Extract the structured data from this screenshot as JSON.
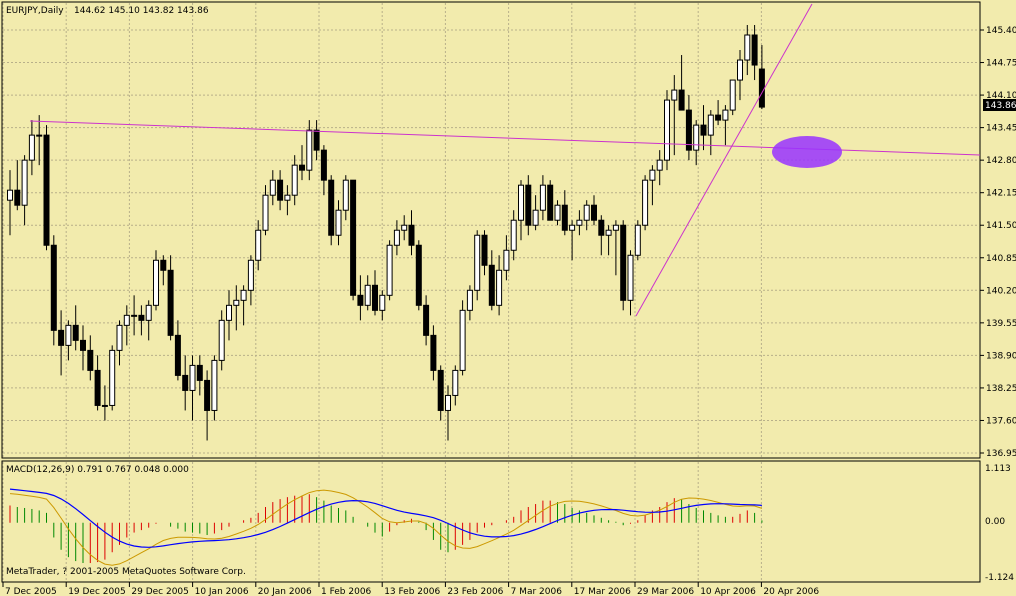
{
  "window": {
    "title": "EURJPY,Daily",
    "ohlc": "144.62 145.10 143.82 143.86"
  },
  "price_axis": {
    "ticks": [
      "145.40",
      "144.75",
      "144.10",
      "143.45",
      "142.80",
      "142.15",
      "141.50",
      "140.85",
      "140.20",
      "139.55",
      "138.90",
      "138.25",
      "137.60",
      "136.95"
    ],
    "current_price": "143.86"
  },
  "macd_panel": {
    "title": "MACD(12,26,9) 0.791 0.767 0.048 0.000",
    "ticks": [
      "1.113",
      "0.00",
      "-1.124"
    ]
  },
  "copyright": "MetaTrader, ? 2001-2005 MetaQuotes Software Corp.",
  "time_axis": [
    "7 Dec 2005",
    "19 Dec 2005",
    "29 Dec 2005",
    "10 Jan 2006",
    "20 Jan 2006",
    "1 Feb 2006",
    "13 Feb 2006",
    "23 Feb 2006",
    "7 Mar 2006",
    "17 Mar 2006",
    "29 Mar 2006",
    "10 Apr 2006",
    "20 Apr 2006"
  ],
  "colors": {
    "background": "#f2ebad",
    "grid": "#b8b08a",
    "trendline": "#cc33cc",
    "ellipse": "#9933ff",
    "macd_line": "#0000ff",
    "signal_line": "#cc9900",
    "hist_up": "#008800",
    "hist_down": "#dd0000"
  },
  "chart_data": {
    "type": "candlestick",
    "symbol": "EURJPY",
    "timeframe": "Daily",
    "ylim": [
      136.95,
      145.4
    ],
    "candles": [
      [
        142.0,
        142.6,
        141.3,
        142.2
      ],
      [
        142.2,
        142.8,
        141.8,
        141.9
      ],
      [
        141.9,
        142.9,
        141.5,
        142.8
      ],
      [
        142.8,
        143.6,
        142.5,
        143.3
      ],
      [
        143.3,
        143.7,
        142.7,
        143.3
      ],
      [
        143.3,
        143.5,
        141.0,
        141.1
      ],
      [
        141.1,
        141.3,
        139.1,
        139.4
      ],
      [
        139.4,
        139.8,
        138.5,
        139.1
      ],
      [
        139.1,
        139.6,
        138.8,
        139.5
      ],
      [
        139.5,
        139.9,
        139.0,
        139.2
      ],
      [
        139.2,
        139.5,
        138.6,
        139.0
      ],
      [
        139.0,
        139.3,
        138.4,
        138.6
      ],
      [
        138.6,
        138.9,
        137.8,
        137.9
      ],
      [
        137.9,
        138.3,
        137.6,
        137.9
      ],
      [
        137.9,
        139.1,
        137.8,
        139.0
      ],
      [
        139.0,
        139.6,
        138.7,
        139.5
      ],
      [
        139.5,
        139.9,
        139.1,
        139.7
      ],
      [
        139.7,
        140.1,
        139.3,
        139.7
      ],
      [
        139.7,
        139.9,
        139.3,
        139.6
      ],
      [
        139.6,
        140.0,
        139.2,
        139.9
      ],
      [
        139.9,
        141.0,
        139.8,
        140.8
      ],
      [
        140.8,
        140.9,
        140.3,
        140.6
      ],
      [
        140.6,
        140.9,
        139.2,
        139.3
      ],
      [
        139.3,
        139.6,
        138.4,
        138.5
      ],
      [
        138.5,
        138.9,
        137.8,
        138.2
      ],
      [
        138.2,
        138.9,
        137.6,
        138.7
      ],
      [
        138.7,
        138.9,
        138.1,
        138.4
      ],
      [
        138.4,
        138.6,
        137.2,
        137.8
      ],
      [
        137.8,
        138.9,
        137.6,
        138.8
      ],
      [
        138.8,
        139.8,
        138.6,
        139.6
      ],
      [
        139.6,
        140.2,
        139.2,
        139.9
      ],
      [
        139.9,
        140.3,
        139.4,
        140.0
      ],
      [
        140.0,
        140.3,
        139.5,
        140.2
      ],
      [
        140.2,
        140.9,
        139.9,
        140.8
      ],
      [
        140.8,
        141.6,
        140.6,
        141.4
      ],
      [
        141.4,
        142.3,
        141.3,
        142.1
      ],
      [
        142.1,
        142.6,
        141.9,
        142.4
      ],
      [
        142.4,
        142.6,
        141.8,
        142.0
      ],
      [
        142.0,
        142.3,
        141.7,
        142.1
      ],
      [
        142.1,
        142.9,
        141.9,
        142.7
      ],
      [
        142.7,
        143.1,
        142.4,
        142.6
      ],
      [
        142.6,
        143.6,
        142.4,
        143.4
      ],
      [
        143.4,
        143.6,
        142.8,
        143.0
      ],
      [
        143.0,
        143.1,
        142.1,
        142.4
      ],
      [
        142.4,
        142.5,
        141.1,
        141.3
      ],
      [
        141.3,
        142.0,
        141.1,
        141.8
      ],
      [
        141.8,
        142.5,
        141.6,
        142.4
      ],
      [
        142.4,
        142.4,
        140.0,
        140.1
      ],
      [
        140.1,
        140.5,
        139.6,
        139.9
      ],
      [
        139.9,
        140.5,
        139.8,
        140.3
      ],
      [
        140.3,
        140.6,
        139.7,
        139.8
      ],
      [
        139.8,
        140.2,
        139.6,
        140.1
      ],
      [
        140.1,
        141.2,
        140.0,
        141.1
      ],
      [
        141.1,
        141.6,
        140.9,
        141.4
      ],
      [
        141.4,
        141.7,
        141.2,
        141.5
      ],
      [
        141.5,
        141.8,
        140.9,
        141.1
      ],
      [
        141.1,
        141.2,
        139.8,
        139.9
      ],
      [
        139.9,
        140.1,
        139.1,
        139.3
      ],
      [
        139.3,
        139.5,
        138.4,
        138.6
      ],
      [
        138.6,
        138.7,
        137.6,
        137.8
      ],
      [
        137.8,
        138.3,
        137.2,
        138.1
      ],
      [
        138.1,
        138.7,
        137.9,
        138.6
      ],
      [
        138.6,
        140.0,
        138.5,
        139.8
      ],
      [
        139.8,
        140.3,
        139.6,
        140.2
      ],
      [
        140.2,
        141.4,
        140.0,
        141.3
      ],
      [
        141.3,
        141.4,
        140.5,
        140.7
      ],
      [
        140.7,
        141.0,
        139.8,
        139.9
      ],
      [
        139.9,
        140.9,
        139.7,
        140.6
      ],
      [
        140.6,
        141.3,
        140.4,
        141.0
      ],
      [
        141.0,
        141.8,
        140.8,
        141.6
      ],
      [
        141.6,
        142.4,
        141.2,
        142.3
      ],
      [
        142.3,
        142.5,
        141.3,
        141.5
      ],
      [
        141.5,
        142.1,
        141.4,
        141.8
      ],
      [
        141.8,
        142.5,
        141.6,
        142.3
      ],
      [
        142.3,
        142.4,
        141.6,
        141.6
      ],
      [
        141.6,
        142.0,
        141.5,
        141.9
      ],
      [
        141.9,
        142.2,
        141.3,
        141.4
      ],
      [
        141.4,
        141.6,
        140.8,
        141.5
      ],
      [
        141.5,
        141.8,
        141.3,
        141.6
      ],
      [
        141.6,
        142.0,
        141.4,
        141.9
      ],
      [
        141.9,
        142.1,
        141.5,
        141.6
      ],
      [
        141.6,
        141.7,
        140.9,
        141.3
      ],
      [
        141.3,
        141.5,
        140.9,
        141.4
      ],
      [
        141.4,
        141.6,
        140.5,
        141.5
      ],
      [
        141.5,
        141.6,
        139.8,
        140.0
      ],
      [
        140.0,
        141.0,
        139.7,
        140.9
      ],
      [
        140.9,
        141.6,
        140.8,
        141.5
      ],
      [
        141.5,
        142.5,
        141.4,
        142.4
      ],
      [
        142.4,
        142.7,
        141.9,
        142.6
      ],
      [
        142.6,
        143.0,
        142.3,
        142.8
      ],
      [
        142.8,
        144.2,
        142.6,
        144.0
      ],
      [
        144.0,
        144.5,
        142.9,
        144.2
      ],
      [
        144.2,
        144.9,
        143.8,
        143.8
      ],
      [
        143.8,
        144.1,
        142.8,
        143.0
      ],
      [
        143.0,
        143.6,
        142.7,
        143.5
      ],
      [
        143.5,
        143.9,
        143.0,
        143.3
      ],
      [
        143.3,
        143.8,
        142.9,
        143.7
      ],
      [
        143.7,
        144.0,
        143.5,
        143.6
      ],
      [
        143.6,
        143.9,
        143.1,
        143.8
      ],
      [
        143.8,
        144.4,
        143.7,
        144.4
      ],
      [
        144.4,
        145.0,
        144.0,
        144.8
      ],
      [
        144.8,
        145.5,
        144.5,
        145.3
      ],
      [
        145.3,
        145.5,
        144.4,
        144.7
      ],
      [
        144.62,
        145.1,
        143.82,
        143.86
      ]
    ],
    "macd": {
      "name": "MACD(12,26,9)",
      "ylim": [
        -1.124,
        1.113
      ],
      "histogram": [
        0.35,
        0.32,
        0.3,
        0.28,
        0.25,
        0.2,
        -0.3,
        -0.55,
        -0.7,
        -0.78,
        -0.82,
        -0.82,
        -0.8,
        -0.75,
        -0.6,
        -0.45,
        -0.3,
        -0.2,
        -0.15,
        -0.1,
        -0.02,
        0.0,
        -0.08,
        -0.12,
        -0.18,
        -0.2,
        -0.22,
        -0.25,
        -0.22,
        -0.15,
        -0.08,
        0.0,
        0.05,
        0.1,
        0.2,
        0.32,
        0.42,
        0.48,
        0.52,
        0.55,
        0.55,
        0.58,
        0.52,
        0.45,
        0.35,
        0.3,
        0.25,
        0.12,
        0.0,
        -0.08,
        -0.2,
        -0.28,
        -0.18,
        -0.05,
        0.05,
        0.08,
        0.02,
        -0.15,
        -0.35,
        -0.55,
        -0.6,
        -0.55,
        -0.45,
        -0.35,
        -0.2,
        -0.1,
        -0.05,
        0.0,
        0.05,
        0.12,
        0.25,
        0.32,
        0.38,
        0.45,
        0.45,
        0.42,
        0.38,
        0.3,
        0.25,
        0.2,
        0.15,
        0.1,
        0.05,
        0.02,
        -0.05,
        -0.02,
        0.05,
        0.15,
        0.25,
        0.32,
        0.42,
        0.5,
        0.48,
        0.38,
        0.3,
        0.25,
        0.2,
        0.15,
        0.12,
        0.12,
        0.18,
        0.25,
        0.2,
        0.048
      ]
    }
  }
}
